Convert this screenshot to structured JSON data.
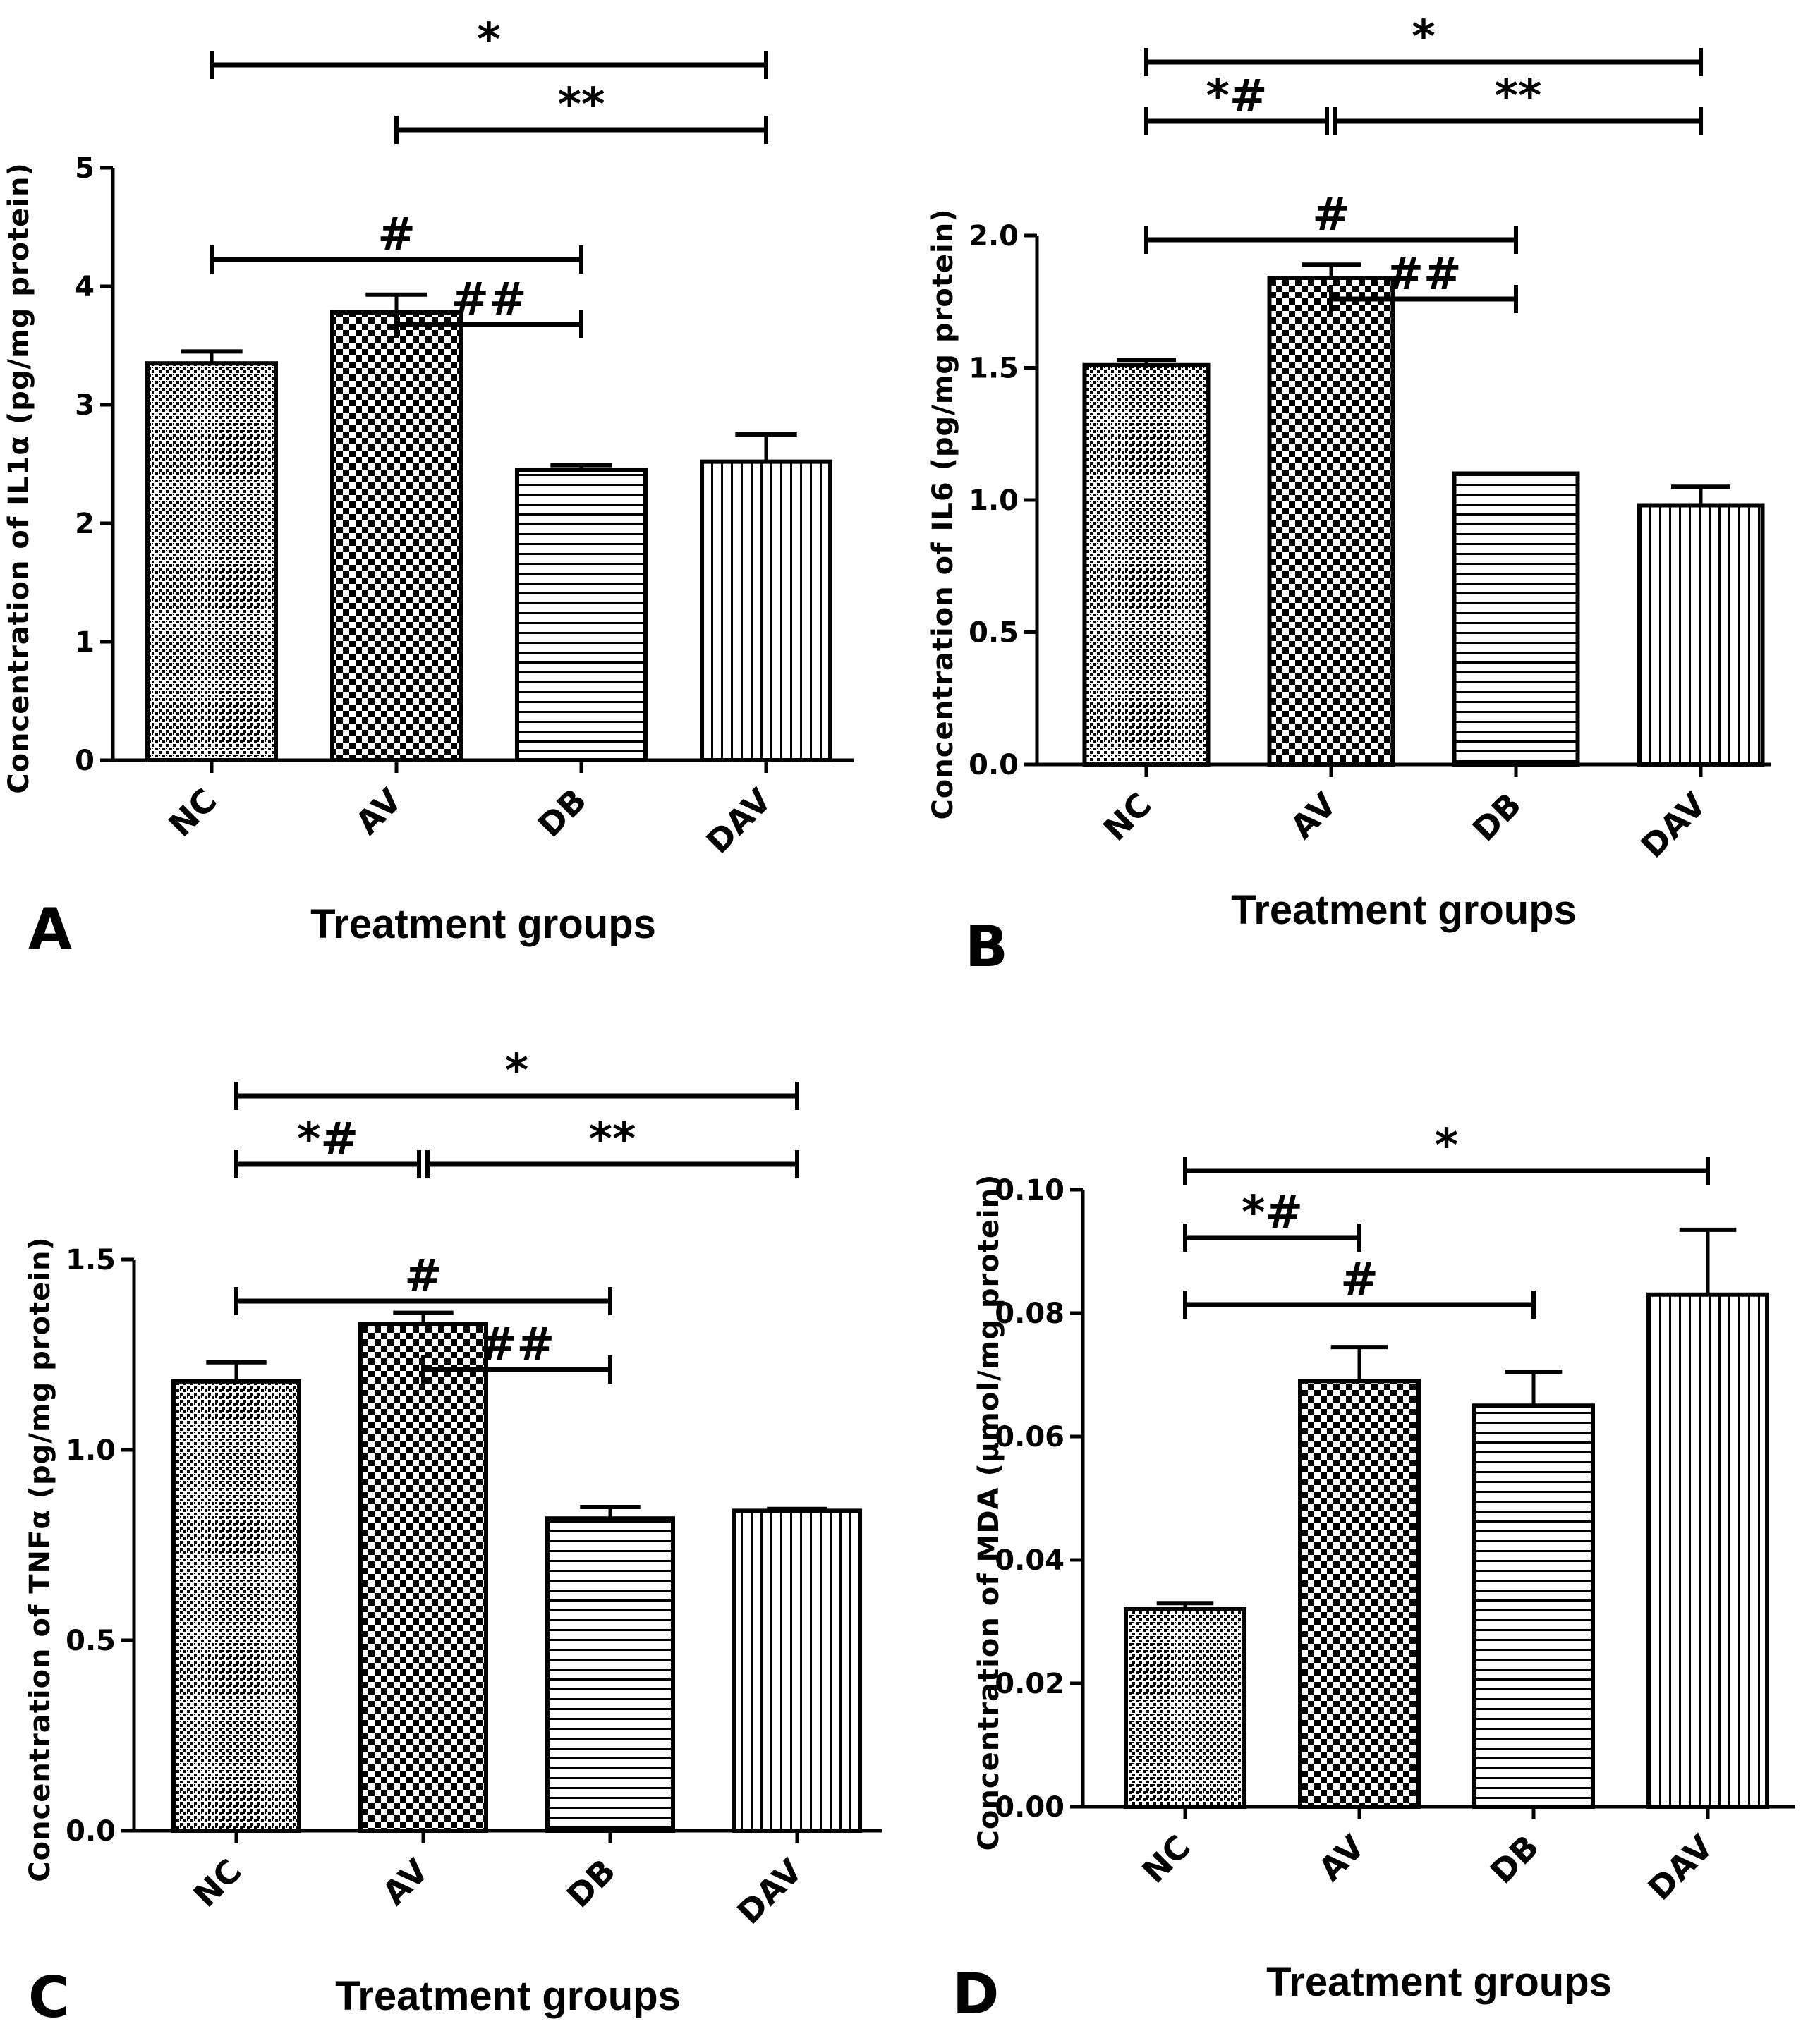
{
  "figure": {
    "shared_xlabel": "Treatment groups"
  },
  "chart_data": [
    {
      "type": "bar",
      "panel": "A",
      "categories": [
        "NC",
        "AV",
        "DB",
        "DAV"
      ],
      "values": [
        3.35,
        3.78,
        2.45,
        2.52
      ],
      "errors": [
        0.1,
        0.15,
        0.04,
        0.23
      ],
      "patterns": [
        "dotted",
        "checker",
        "horizontal",
        "vertical"
      ],
      "xlabel": "Treatment groups",
      "ylabel": "Concentration of IL1α (pg/mg protein)",
      "ylim": [
        0,
        5
      ],
      "yticks": [
        {
          "value": 0,
          "label": "0"
        },
        {
          "value": 1,
          "label": "1"
        },
        {
          "value": 2,
          "label": "2"
        },
        {
          "value": 3,
          "label": "3"
        },
        {
          "value": 4,
          "label": "4"
        },
        {
          "value": 5,
          "label": "5"
        }
      ],
      "annotations": [
        {
          "from": 0,
          "to": 3,
          "label": "*",
          "level": 4
        },
        {
          "from": 1,
          "to": 3,
          "label": "**",
          "level": 3
        },
        {
          "from": 0,
          "to": 2,
          "label": "#",
          "level": 1
        },
        {
          "from": 1,
          "to": 2,
          "label": "##",
          "level": 0
        }
      ]
    },
    {
      "type": "bar",
      "panel": "B",
      "categories": [
        "NC",
        "AV",
        "DB",
        "DAV"
      ],
      "values": [
        1.51,
        1.84,
        1.1,
        0.98
      ],
      "errors": [
        0.02,
        0.05,
        0.0,
        0.07
      ],
      "patterns": [
        "dotted",
        "checker",
        "horizontal",
        "vertical"
      ],
      "xlabel": "Treatment groups",
      "ylabel": "Concentration of IL6 (pg/mg protein)",
      "ylim": [
        0,
        2
      ],
      "yticks": [
        {
          "value": 0,
          "label": "0.0"
        },
        {
          "value": 0.5,
          "label": "0.5"
        },
        {
          "value": 1,
          "label": "1.0"
        },
        {
          "value": 1.5,
          "label": "1.5"
        },
        {
          "value": 2,
          "label": "2.0"
        }
      ],
      "annotations": [
        {
          "from": 0,
          "to": 3,
          "label": "*",
          "level": 4
        },
        {
          "from": 0,
          "to": 1,
          "label": "*#",
          "level": 3
        },
        {
          "from": 1,
          "to": 3,
          "label": "**",
          "level": 3
        },
        {
          "from": 0,
          "to": 2,
          "label": "#",
          "level": 1
        },
        {
          "from": 1,
          "to": 2,
          "label": "##",
          "level": 0
        }
      ]
    },
    {
      "type": "bar",
      "panel": "C",
      "categories": [
        "NC",
        "AV",
        "DB",
        "DAV"
      ],
      "values": [
        1.18,
        1.33,
        0.82,
        0.84
      ],
      "errors": [
        0.05,
        0.03,
        0.03,
        0.005
      ],
      "patterns": [
        "dotted",
        "checker",
        "horizontal",
        "vertical"
      ],
      "xlabel": "Treatment groups",
      "ylabel": "Concentration of TNFα (pg/mg protein)",
      "ylim": [
        0,
        1.5
      ],
      "yticks": [
        {
          "value": 0,
          "label": "0.0"
        },
        {
          "value": 0.5,
          "label": "0.5"
        },
        {
          "value": 1,
          "label": "1.0"
        },
        {
          "value": 1.5,
          "label": "1.5"
        }
      ],
      "annotations": [
        {
          "from": 0,
          "to": 3,
          "label": "*",
          "level": 4
        },
        {
          "from": 0,
          "to": 1,
          "label": "*#",
          "level": 3
        },
        {
          "from": 1,
          "to": 3,
          "label": "**",
          "level": 3
        },
        {
          "from": 0,
          "to": 2,
          "label": "#",
          "level": 1
        },
        {
          "from": 1,
          "to": 2,
          "label": "##",
          "level": 0
        }
      ]
    },
    {
      "type": "bar",
      "panel": "D",
      "categories": [
        "NC",
        "AV",
        "DB",
        "DAV"
      ],
      "values": [
        0.032,
        0.069,
        0.065,
        0.083
      ],
      "errors": [
        0.001,
        0.0055,
        0.0055,
        0.0105
      ],
      "patterns": [
        "dotted",
        "checker",
        "horizontal",
        "vertical"
      ],
      "xlabel": "Treatment groups",
      "ylabel": "Concentration of MDA (μmol/mg protein)",
      "ylim": [
        0,
        0.1
      ],
      "yticks": [
        {
          "value": 0,
          "label": "0.00"
        },
        {
          "value": 0.02,
          "label": "0.02"
        },
        {
          "value": 0.04,
          "label": "0.04"
        },
        {
          "value": 0.06,
          "label": "0.06"
        },
        {
          "value": 0.08,
          "label": "0.08"
        },
        {
          "value": 0.1,
          "label": "0.10"
        }
      ],
      "annotations": [
        {
          "from": 0,
          "to": 3,
          "label": "*",
          "level": 3
        },
        {
          "from": 0,
          "to": 1,
          "label": "*#",
          "level": 2
        },
        {
          "from": 0,
          "to": 2,
          "label": "#",
          "level": 1
        }
      ]
    }
  ]
}
